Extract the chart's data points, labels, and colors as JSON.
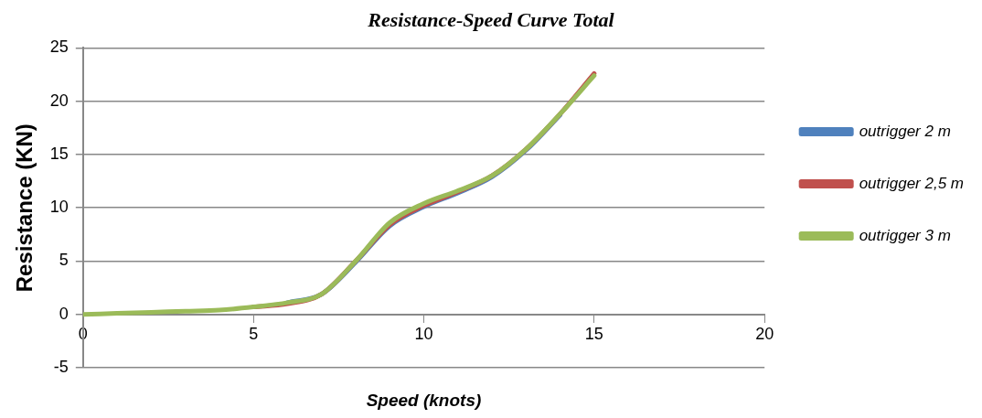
{
  "chart_data": {
    "type": "line",
    "title": "Resistance-Speed Curve Total",
    "xlabel": "Speed (knots)",
    "ylabel": "Resistance (KN)",
    "x": [
      0,
      1,
      2,
      3,
      4,
      5,
      6,
      7,
      8,
      9,
      10,
      11,
      12,
      13,
      14,
      15
    ],
    "series": [
      {
        "name": "outrigger 2 m",
        "color": "#4f81bd",
        "values": [
          null,
          null,
          null,
          null,
          null,
          null,
          1.1,
          1.9,
          4.9,
          8.3,
          10.1,
          11.4,
          12.9,
          15.4,
          18.7,
          null
        ]
      },
      {
        "name": "outrigger 2,5 m",
        "color": "#c0504d",
        "values": [
          null,
          null,
          null,
          null,
          null,
          0.7,
          1.0,
          1.9,
          5.0,
          8.4,
          10.2,
          11.5,
          13.0,
          15.5,
          18.8,
          22.6
        ]
      },
      {
        "name": "outrigger 3 m",
        "color": "#9bbb59",
        "values": [
          0,
          0.1,
          0.2,
          0.3,
          0.4,
          0.7,
          1.1,
          1.9,
          5.0,
          8.6,
          10.4,
          11.6,
          13.0,
          15.5,
          18.8,
          22.4
        ]
      }
    ],
    "xlim": [
      0,
      20
    ],
    "xticks": [
      0,
      5,
      10,
      15,
      20
    ],
    "ylim": [
      -5,
      25
    ],
    "yticks": [
      -5,
      0,
      5,
      10,
      15,
      20,
      25
    ],
    "grid": "y",
    "legend": "right",
    "marker": "none",
    "line_style": "solid"
  }
}
